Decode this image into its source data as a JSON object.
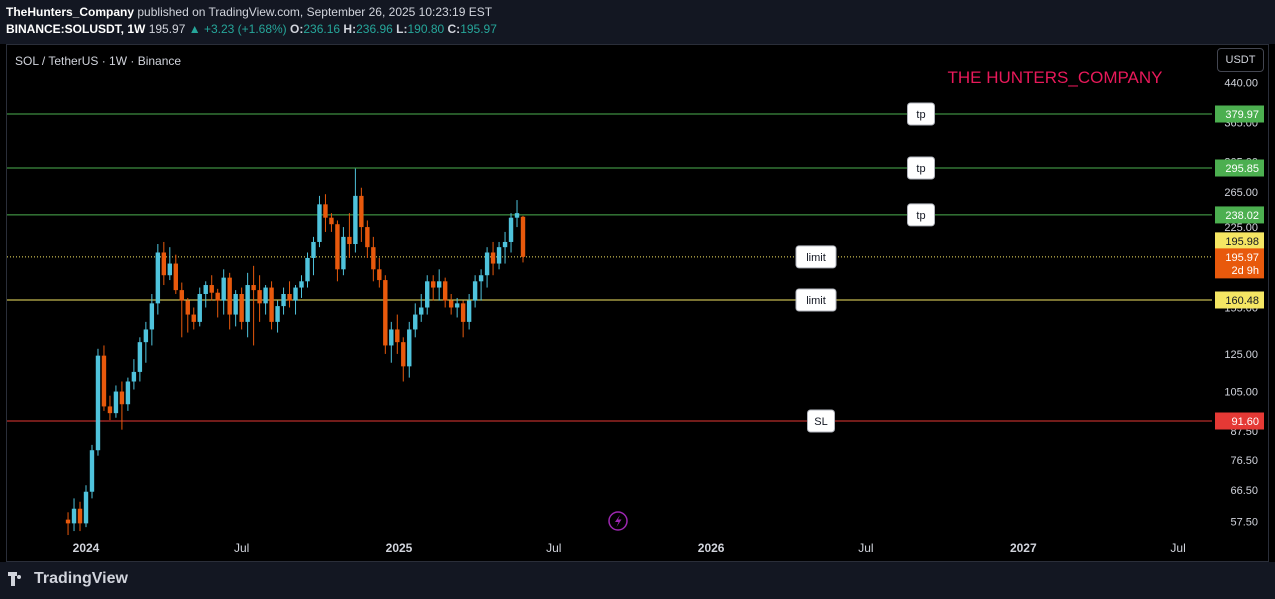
{
  "header": {
    "author": "TheHunters_Company",
    "published": "published on TradingView.com, September 26, 2025 10:23:19 EST",
    "symbol": "BINANCE:SOLUSDT, 1W",
    "price": "195.97",
    "change": "+3.23 (+1.68%)",
    "ohlc": {
      "o_label": "O:",
      "o": "236.16",
      "h_label": "H:",
      "h": "236.96",
      "l_label": "L:",
      "l": "190.80",
      "c_label": "C:",
      "c": "195.97"
    }
  },
  "legend_title": "SOL / TetherUS · 1W · Binance",
  "watermark": "THE HUNTERS_COMPANY",
  "currency_button": "USDT",
  "footer": {
    "brand": "TradingView"
  },
  "colors": {
    "up": "#4fc3dc",
    "down": "#e8590c",
    "tp_line": "#4caf50",
    "limit_line": "#f5e663",
    "sl_line": "#e53935",
    "watermark": "#e8195a"
  },
  "chart_data": {
    "type": "candlestick",
    "interval": "1W",
    "y_axis": {
      "scale": "log",
      "ticks": [
        "440.00",
        "365.00",
        "305.00",
        "265.00",
        "225.00",
        "185.00",
        "155.00",
        "125.00",
        "105.00",
        "87.50",
        "76.50",
        "66.50",
        "57.50"
      ]
    },
    "x_axis": {
      "ticks": [
        {
          "label": "2024",
          "date": "2024-01-01"
        },
        {
          "label": "Jul",
          "date": "2024-07-01"
        },
        {
          "label": "2025",
          "date": "2025-01-01"
        },
        {
          "label": "Jul",
          "date": "2025-07-01"
        },
        {
          "label": "2026",
          "date": "2026-01-01"
        },
        {
          "label": "Jul",
          "date": "2026-07-01"
        },
        {
          "label": "2027",
          "date": "2027-01-01"
        },
        {
          "label": "Jul",
          "date": "2027-07-01"
        }
      ]
    },
    "price_labels": [
      {
        "text": "379.97",
        "value": 379.97,
        "color": "#4caf50"
      },
      {
        "text": "295.85",
        "value": 295.85,
        "color": "#4caf50"
      },
      {
        "text": "238.02",
        "value": 238.02,
        "color": "#4caf50"
      },
      {
        "text": "195.98",
        "value": 195.98,
        "color": "#f5e663"
      },
      {
        "text": "195.97",
        "value": 195.97,
        "color": "#e8590c",
        "sub": "2d 9h"
      },
      {
        "text": "160.48",
        "value": 160.48,
        "color": "#f5e663"
      },
      {
        "text": "91.60",
        "value": 91.6,
        "color": "#e53935"
      }
    ],
    "levels": [
      {
        "value": 379.97,
        "label": "tp",
        "color": "#4caf50"
      },
      {
        "value": 295.85,
        "label": "tp",
        "color": "#4caf50"
      },
      {
        "value": 238.02,
        "label": "tp",
        "color": "#4caf50"
      },
      {
        "value": 195.98,
        "label": "limit",
        "color": "#f5e663",
        "dotted": true
      },
      {
        "value": 160.48,
        "label": "limit",
        "color": "#f5e663"
      },
      {
        "value": 91.6,
        "label": "SL",
        "color": "#e53935"
      }
    ],
    "candles": [
      [
        58,
        60,
        54,
        57
      ],
      [
        57,
        64,
        55,
        61
      ],
      [
        61,
        63,
        55,
        57
      ],
      [
        57,
        68,
        56,
        66
      ],
      [
        66,
        82,
        64,
        80
      ],
      [
        80,
        128,
        78,
        124
      ],
      [
        124,
        130,
        96,
        98
      ],
      [
        98,
        103,
        92,
        95
      ],
      [
        95,
        108,
        93,
        105
      ],
      [
        105,
        110,
        88,
        99
      ],
      [
        99,
        112,
        96,
        110
      ],
      [
        110,
        122,
        106,
        115
      ],
      [
        115,
        135,
        110,
        132
      ],
      [
        132,
        145,
        120,
        140
      ],
      [
        140,
        165,
        130,
        158
      ],
      [
        158,
        208,
        150,
        200
      ],
      [
        200,
        210,
        172,
        180
      ],
      [
        180,
        205,
        176,
        190
      ],
      [
        190,
        198,
        165,
        168
      ],
      [
        168,
        174,
        135,
        160
      ],
      [
        160,
        162,
        138,
        150
      ],
      [
        150,
        155,
        140,
        145
      ],
      [
        145,
        170,
        142,
        165
      ],
      [
        165,
        175,
        155,
        172
      ],
      [
        172,
        180,
        160,
        166
      ],
      [
        166,
        169,
        148,
        160
      ],
      [
        160,
        185,
        150,
        178
      ],
      [
        178,
        182,
        140,
        150
      ],
      [
        150,
        168,
        142,
        165
      ],
      [
        165,
        170,
        140,
        145
      ],
      [
        145,
        182,
        135,
        172
      ],
      [
        172,
        188,
        130,
        168
      ],
      [
        168,
        180,
        145,
        158
      ],
      [
        158,
        172,
        150,
        170
      ],
      [
        170,
        175,
        140,
        145
      ],
      [
        145,
        160,
        138,
        156
      ],
      [
        156,
        170,
        150,
        165
      ],
      [
        165,
        175,
        155,
        160
      ],
      [
        160,
        172,
        150,
        170
      ],
      [
        170,
        180,
        162,
        175
      ],
      [
        175,
        200,
        170,
        195
      ],
      [
        195,
        215,
        180,
        210
      ],
      [
        210,
        260,
        205,
        250
      ],
      [
        250,
        262,
        220,
        235
      ],
      [
        235,
        240,
        220,
        228
      ],
      [
        228,
        232,
        175,
        185
      ],
      [
        185,
        225,
        180,
        215
      ],
      [
        215,
        240,
        195,
        208
      ],
      [
        208,
        295,
        200,
        260
      ],
      [
        260,
        270,
        210,
        225
      ],
      [
        225,
        232,
        195,
        205
      ],
      [
        205,
        215,
        175,
        185
      ],
      [
        185,
        195,
        170,
        176
      ],
      [
        176,
        180,
        125,
        130
      ],
      [
        130,
        145,
        120,
        140
      ],
      [
        140,
        150,
        125,
        132
      ],
      [
        132,
        135,
        110,
        118
      ],
      [
        118,
        145,
        112,
        140
      ],
      [
        140,
        158,
        135,
        150
      ],
      [
        150,
        165,
        145,
        155
      ],
      [
        155,
        180,
        150,
        175
      ],
      [
        175,
        180,
        160,
        170
      ],
      [
        170,
        185,
        160,
        175
      ],
      [
        175,
        178,
        155,
        160
      ],
      [
        160,
        165,
        150,
        155
      ],
      [
        155,
        162,
        148,
        158
      ],
      [
        158,
        160,
        135,
        145
      ],
      [
        145,
        165,
        140,
        160
      ],
      [
        160,
        180,
        155,
        175
      ],
      [
        175,
        185,
        160,
        180
      ],
      [
        180,
        205,
        170,
        200
      ],
      [
        200,
        210,
        180,
        190
      ],
      [
        190,
        210,
        185,
        205
      ],
      [
        205,
        220,
        190,
        210
      ],
      [
        210,
        240,
        200,
        235
      ],
      [
        235,
        255,
        225,
        240
      ],
      [
        236,
        237,
        191,
        196
      ]
    ]
  }
}
